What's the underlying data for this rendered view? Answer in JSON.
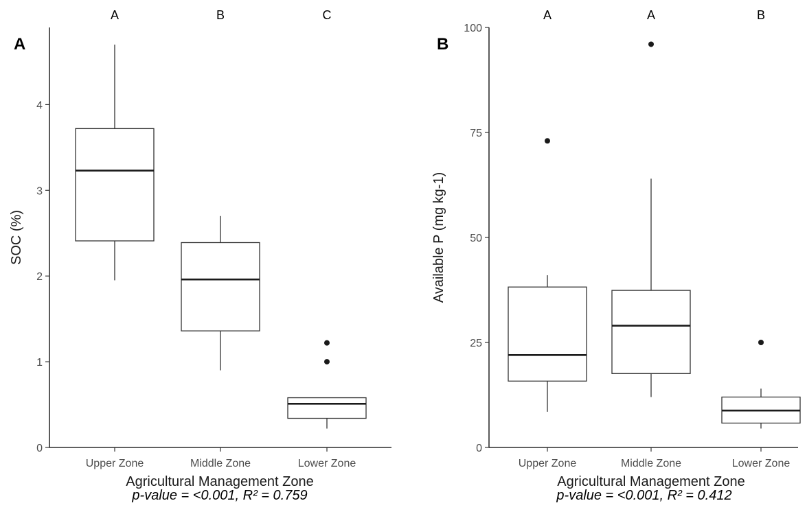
{
  "chart_data": [
    {
      "type": "box",
      "panel_label": "A",
      "xlabel": "Agricultural Management Zone",
      "ylabel": "SOC (%)",
      "ylim": [
        0,
        4.9
      ],
      "yticks": [
        0,
        1,
        2,
        3,
        4
      ],
      "categories": [
        "Upper Zone",
        "Middle Zone",
        "Lower Zone"
      ],
      "group_letters": [
        "A",
        "B",
        "C"
      ],
      "boxes": [
        {
          "whisker_low": 1.95,
          "q1": 2.41,
          "median": 3.23,
          "q3": 3.72,
          "whisker_high": 4.7,
          "outliers": []
        },
        {
          "whisker_low": 0.9,
          "q1": 1.36,
          "median": 1.96,
          "q3": 2.39,
          "whisker_high": 2.7,
          "outliers": []
        },
        {
          "whisker_low": 0.22,
          "q1": 0.34,
          "median": 0.51,
          "q3": 0.58,
          "whisker_high": 0.58,
          "outliers": [
            1.0,
            1.22
          ]
        }
      ],
      "annotation": "p-value = <0.001, R² = 0.759"
    },
    {
      "type": "box",
      "panel_label": "B",
      "xlabel": "Agricultural Management Zone",
      "ylabel": "Available P (mg kg-1)",
      "ylim": [
        0,
        100
      ],
      "yticks": [
        0,
        25,
        50,
        75,
        100
      ],
      "categories": [
        "Upper Zone",
        "Middle Zone",
        "Lower Zone"
      ],
      "group_letters": [
        "A",
        "A",
        "B"
      ],
      "boxes": [
        {
          "whisker_low": 8.5,
          "q1": 15.8,
          "median": 22,
          "q3": 38.2,
          "whisker_high": 41,
          "outliers": [
            73
          ]
        },
        {
          "whisker_low": 12,
          "q1": 17.6,
          "median": 29,
          "q3": 37.4,
          "whisker_high": 64,
          "outliers": [
            96
          ]
        },
        {
          "whisker_low": 4.5,
          "q1": 5.8,
          "median": 8.8,
          "q3": 12,
          "whisker_high": 14,
          "outliers": [
            25
          ]
        }
      ],
      "annotation": "p-value = <0.001, R² = 0.412"
    }
  ]
}
